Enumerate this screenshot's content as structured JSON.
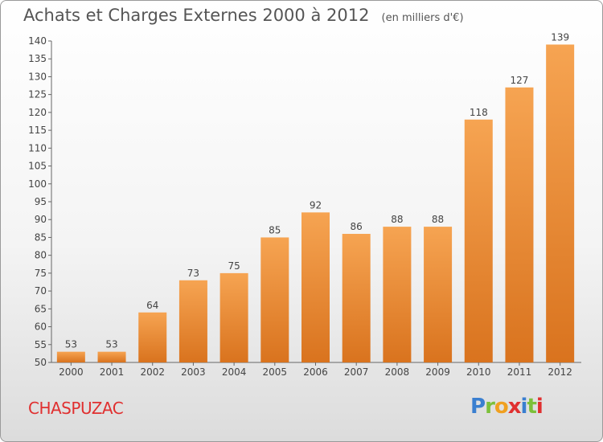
{
  "chart_data": {
    "type": "bar",
    "title": "Achats et Charges Externes 2000 à 2012",
    "subtitle": "(en milliers d'€)",
    "categories": [
      "2000",
      "2001",
      "2002",
      "2003",
      "2004",
      "2005",
      "2006",
      "2007",
      "2008",
      "2009",
      "2010",
      "2011",
      "2012"
    ],
    "values": [
      53,
      53,
      64,
      73,
      75,
      85,
      92,
      86,
      88,
      88,
      118,
      127,
      139
    ],
    "ylim": [
      50,
      140
    ],
    "yticks": [
      50,
      55,
      60,
      65,
      70,
      75,
      80,
      85,
      90,
      95,
      100,
      105,
      110,
      115,
      120,
      125,
      130,
      135,
      140
    ],
    "grid": false,
    "bar_color_top": "#f6a452",
    "bar_color_bottom": "#d9731e"
  },
  "place_name": "CHASPUZAC",
  "logo_text": "Proxiti"
}
